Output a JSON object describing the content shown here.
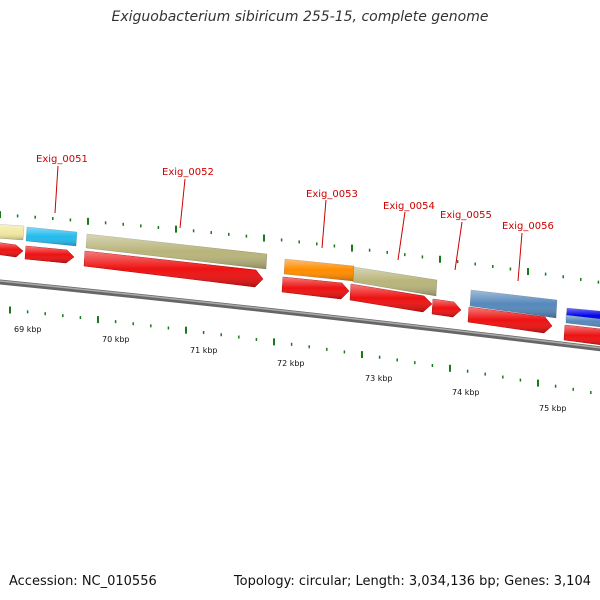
{
  "title": "Exiguobacterium sibiricum 255-15, complete genome",
  "footer": {
    "accession": "Accession: NC_010556",
    "summary": "Topology: circular; Length: 3,034,136 bp; Genes: 3,104"
  },
  "colors": {
    "cds": "#ee1111",
    "backbone": "#888888",
    "tick": "#1a7a1a",
    "label": "#cc0000"
  },
  "scale_labels": [
    "69 kbp",
    "70 kbp",
    "71 kbp",
    "72 kbp",
    "73 kbp",
    "74 kbp",
    "75 kbp"
  ],
  "gene_labels": [
    "Exig_0051",
    "Exig_0052",
    "Exig_0053",
    "Exig_0054",
    "Exig_0055",
    "Exig_0056"
  ],
  "feature_colors": [
    "#f2e8a0",
    "#22bbee",
    "#b8b47a",
    "#ff8c00",
    "#b8b47a",
    "#5588bb",
    "#0000ee"
  ]
}
